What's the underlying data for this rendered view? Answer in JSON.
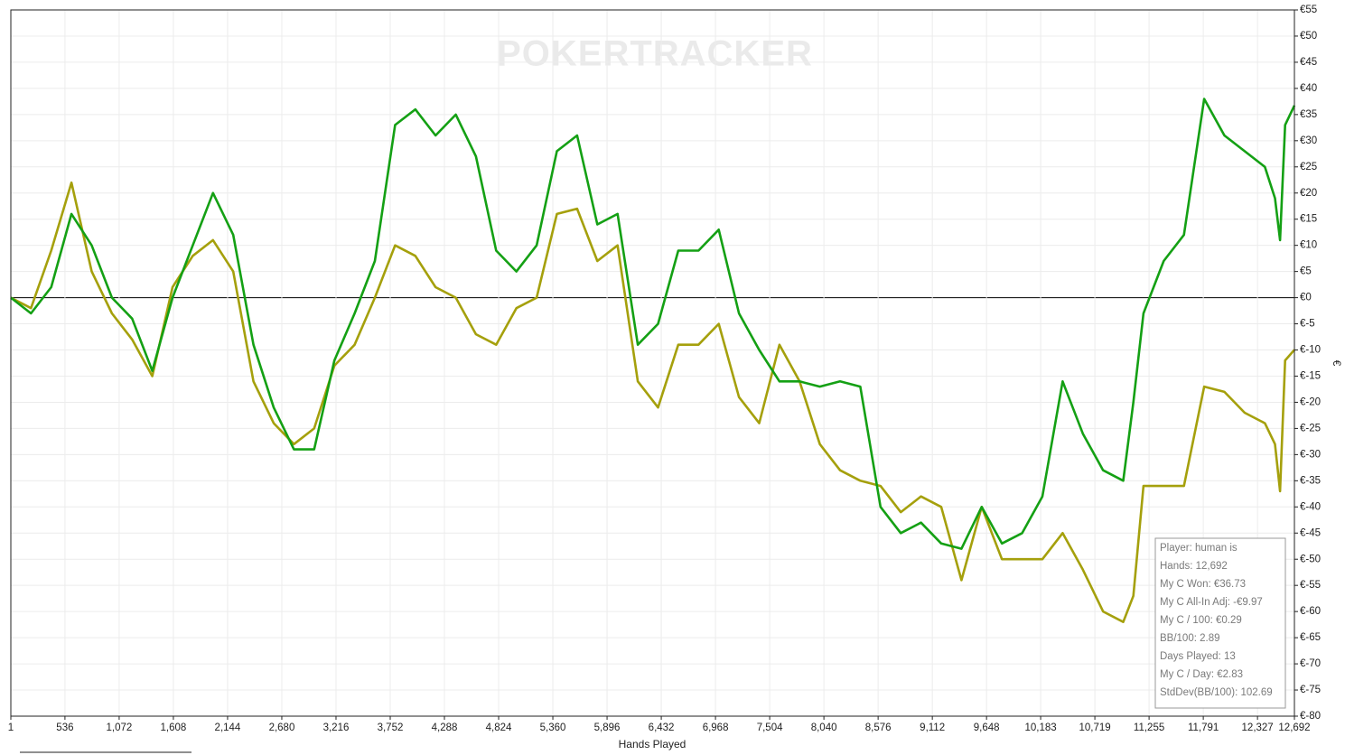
{
  "chart_data": {
    "type": "line",
    "watermark": "POKERTRACKER",
    "x_label": "Hands Played",
    "y_label": "€",
    "yaxis_side": "right",
    "grid": true,
    "x": [
      1,
      200,
      400,
      600,
      800,
      1000,
      1200,
      1400,
      1600,
      1800,
      2000,
      2200,
      2400,
      2600,
      2800,
      3000,
      3200,
      3400,
      3600,
      3800,
      4000,
      4200,
      4400,
      4600,
      4800,
      5000,
      5200,
      5400,
      5600,
      5800,
      6000,
      6200,
      6400,
      6600,
      6800,
      7000,
      7200,
      7400,
      7600,
      7800,
      8000,
      8200,
      8400,
      8600,
      8800,
      9000,
      9200,
      9400,
      9600,
      9800,
      10000,
      10200,
      10400,
      10600,
      10800,
      11000,
      11100,
      11200,
      11400,
      11600,
      11800,
      12000,
      12200,
      12400,
      12500,
      12550,
      12600,
      12692
    ],
    "series": [
      {
        "color": "#14a014",
        "values": [
          0,
          -3,
          2,
          16,
          10,
          0,
          -4,
          -14,
          0,
          10,
          20,
          12,
          -9,
          -21,
          -29,
          -29,
          -12,
          -3,
          7,
          33,
          36,
          31,
          35,
          27,
          9,
          5,
          10,
          28,
          31,
          14,
          16,
          -9,
          -5,
          9,
          9,
          13,
          -3,
          -10,
          -16,
          -16,
          -17,
          -16,
          -17,
          -40,
          -45,
          -43,
          -47,
          -48,
          -40,
          -47,
          -45,
          -38,
          -16,
          -26,
          -33,
          -35,
          -20,
          -3,
          7,
          12,
          38,
          31,
          28,
          25,
          19,
          11,
          33,
          36.73
        ]
      },
      {
        "color": "#a5a00c",
        "values": [
          0,
          -2,
          9,
          22,
          5,
          -3,
          -8,
          -15,
          2,
          8,
          11,
          5,
          -16,
          -24,
          -28,
          -25,
          -13,
          -9,
          0,
          10,
          8,
          2,
          0,
          -7,
          -9,
          -2,
          0,
          16,
          17,
          7,
          10,
          -16,
          -21,
          -9,
          -9,
          -5,
          -19,
          -24,
          -9,
          -16,
          -28,
          -33,
          -35,
          -36,
          -41,
          -38,
          -40,
          -54,
          -40,
          -50,
          -50,
          -50,
          -45,
          -52,
          -60,
          -62,
          -57,
          -36,
          -36,
          -36,
          -17,
          -18,
          -22,
          -24,
          -28,
          -37,
          -12,
          -9.97
        ]
      }
    ],
    "xlim": [
      1,
      12692
    ],
    "xticks": [
      1,
      536,
      {
        "value": 1072,
        "label": "1,072"
      },
      {
        "value": 1608,
        "label": "1,608"
      },
      {
        "value": 2144,
        "label": "2,144"
      },
      {
        "value": 2680,
        "label": "2,680"
      },
      {
        "value": 3216,
        "label": "3,216"
      },
      {
        "value": 3752,
        "label": "3,752"
      },
      {
        "value": 4288,
        "label": "4,288"
      },
      {
        "value": 4824,
        "label": "4,824"
      },
      {
        "value": 5360,
        "label": "5,360"
      },
      {
        "value": 5896,
        "label": "5,896"
      },
      {
        "value": 6432,
        "label": "6,432"
      },
      {
        "value": 6968,
        "label": "6,968"
      },
      {
        "value": 7504,
        "label": "7,504"
      },
      {
        "value": 8040,
        "label": "8,040"
      },
      {
        "value": 8576,
        "label": "8,576"
      },
      {
        "value": 9112,
        "label": "9,112"
      },
      {
        "value": 9648,
        "label": "9,648"
      },
      {
        "value": 10183,
        "label": "10,183"
      },
      {
        "value": 10719,
        "label": "10,719"
      },
      {
        "value": 11255,
        "label": "11,255"
      },
      {
        "value": 11791,
        "label": "11,791"
      },
      {
        "value": 12327,
        "label": "12,327"
      },
      {
        "value": 12692,
        "label": "12,692"
      }
    ],
    "ylim": [
      -80,
      55
    ],
    "yticks": [
      {
        "value": 55,
        "label": "€55"
      },
      {
        "value": 50,
        "label": "€50"
      },
      {
        "value": 45,
        "label": "€45"
      },
      {
        "value": 40,
        "label": "€40"
      },
      {
        "value": 35,
        "label": "€35"
      },
      {
        "value": 30,
        "label": "€30"
      },
      {
        "value": 25,
        "label": "€25"
      },
      {
        "value": 20,
        "label": "€20"
      },
      {
        "value": 15,
        "label": "€15"
      },
      {
        "value": 10,
        "label": "€10"
      },
      {
        "value": 5,
        "label": "€5"
      },
      {
        "value": 0,
        "label": "€0"
      },
      {
        "value": -5,
        "label": "€-5"
      },
      {
        "value": -10,
        "label": "€-10"
      },
      {
        "value": -15,
        "label": "€-15"
      },
      {
        "value": -20,
        "label": "€-20"
      },
      {
        "value": -25,
        "label": "€-25"
      },
      {
        "value": -30,
        "label": "€-30"
      },
      {
        "value": -35,
        "label": "€-35"
      },
      {
        "value": -40,
        "label": "€-40"
      },
      {
        "value": -45,
        "label": "€-45"
      },
      {
        "value": -50,
        "label": "€-50"
      },
      {
        "value": -55,
        "label": "€-55"
      },
      {
        "value": -60,
        "label": "€-60"
      },
      {
        "value": -65,
        "label": "€-65"
      },
      {
        "value": -70,
        "label": "€-70"
      },
      {
        "value": -75,
        "label": "€-75"
      },
      {
        "value": -80,
        "label": "€-80"
      }
    ],
    "info_box": [
      "Player: human is",
      "Hands: 12,692",
      "My C Won: €36.73",
      "My C All-In Adj: -€9.97",
      "My C / 100: €0.29",
      "BB/100: 2.89",
      "Days Played: 13",
      "My C / Day: €2.83",
      "StdDev(BB/100): 102.69"
    ]
  }
}
